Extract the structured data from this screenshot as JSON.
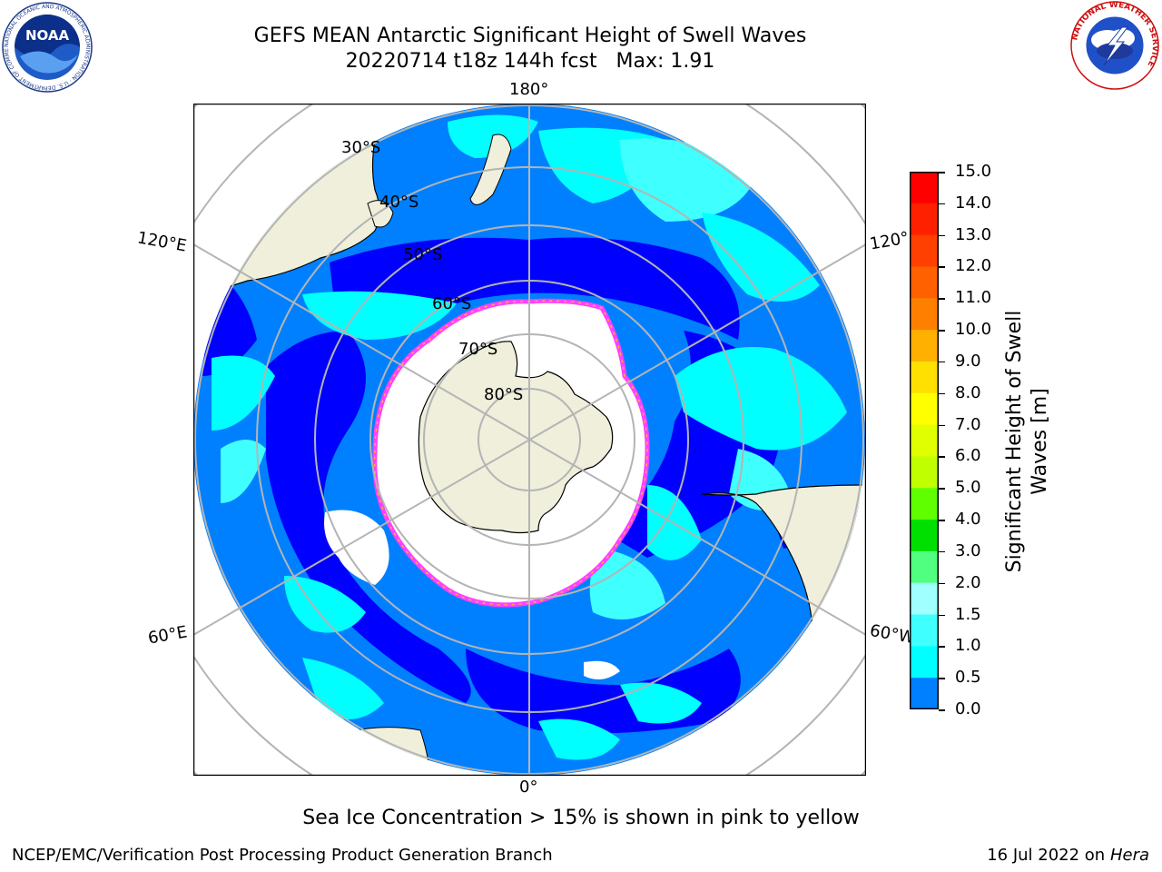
{
  "title": {
    "line1": "GEFS MEAN Antarctic Significant Height of Swell Waves",
    "line2": "20220714 t18z 144h fcst   Max: 1.91"
  },
  "logos": {
    "left": {
      "name": "noaa-logo",
      "text": "NOAA",
      "ring_text": "NATIONAL OCEANIC AND ATMOSPHERIC ADMINISTRATION · U.S. DEPARTMENT OF COMMERCE"
    },
    "right": {
      "name": "nws-logo",
      "ring_text": "NATIONAL WEATHER SERVICE"
    }
  },
  "map": {
    "projection": "south-polar-stereographic",
    "lon_labels": {
      "top": "180°",
      "bottom": "0°",
      "left_upper": "120°E",
      "left_lower": "60°E",
      "right_upper": "120°",
      "right_lower": "60°W"
    },
    "lat_labels": [
      "30°S",
      "40°S",
      "50°S",
      "60°S",
      "70°S",
      "80°S"
    ],
    "colors": {
      "land": "#efefdc",
      "ocean_0_05": "#0000ff",
      "ocean_05_1": "#0080ff",
      "ocean_1_15": "#00ffff",
      "ocean_15_2": "#40ffff",
      "ice": "#ffffff",
      "ice_edge": "#ff40ff",
      "ice_edge2": "#ffb040",
      "grid": "#b4b4b4"
    }
  },
  "colorbar": {
    "label": "Significant Height of Swell Waves [m]",
    "label_line1": "Significant Height of Swell",
    "label_line2": "Waves [m]",
    "ticks": [
      "15.0",
      "14.0",
      "13.0",
      "12.0",
      "11.0",
      "10.0",
      "9.0",
      "8.0",
      "7.0",
      "6.0",
      "5.0",
      "4.0",
      "3.0",
      "2.0",
      "1.5",
      "1.0",
      "0.5",
      "0.0"
    ],
    "colors": [
      "#ff0000",
      "#ff2000",
      "#ff4000",
      "#ff6000",
      "#ff8000",
      "#ffb000",
      "#ffe000",
      "#ffff00",
      "#e0ff00",
      "#c0ff00",
      "#60ff00",
      "#00e000",
      "#50ff80",
      "#a0ffff",
      "#40ffff",
      "#00ffff",
      "#0080ff",
      "#0000ff"
    ]
  },
  "note": "Sea Ice Concentration > 15% is shown in pink to yellow",
  "footer": {
    "left": "NCEP/EMC/Verification Post Processing Product Generation Branch",
    "right_date": "16 Jul 2022 on ",
    "right_host": "Hera"
  }
}
